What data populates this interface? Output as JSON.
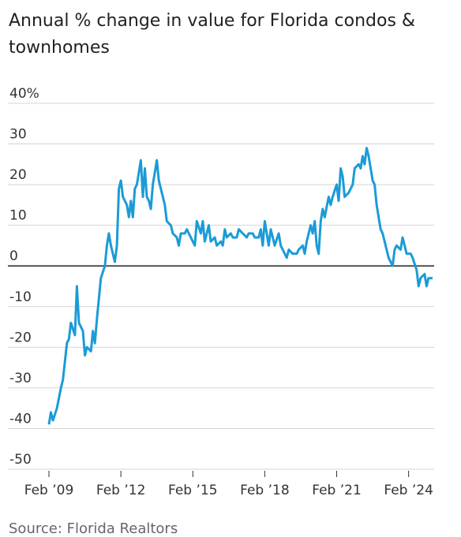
{
  "chart_data": {
    "type": "line",
    "subtitle": "Annual % change in value for Florida condos & townhomes",
    "source": "Source: Florida Realtors",
    "x": [
      "2009-02",
      "2009-03",
      "2009-04",
      "2009-06",
      "2009-08",
      "2009-09",
      "2009-11",
      "2009-12",
      "2010-01",
      "2010-03",
      "2010-04",
      "2010-05",
      "2010-07",
      "2010-08",
      "2010-09",
      "2010-11",
      "2010-12",
      "2011-01",
      "2011-02",
      "2011-04",
      "2011-06",
      "2011-07",
      "2011-08",
      "2011-09",
      "2011-10",
      "2011-11",
      "2011-12",
      "2012-01",
      "2012-02",
      "2012-03",
      "2012-05",
      "2012-06",
      "2012-07",
      "2012-08",
      "2012-09",
      "2012-10",
      "2012-12",
      "2013-01",
      "2013-02",
      "2013-03",
      "2013-04",
      "2013-05",
      "2013-06",
      "2013-08",
      "2013-09",
      "2013-11",
      "2013-12",
      "2014-01",
      "2014-03",
      "2014-04",
      "2014-06",
      "2014-07",
      "2014-08",
      "2014-10",
      "2014-11",
      "2014-12",
      "2015-02",
      "2015-03",
      "2015-04",
      "2015-06",
      "2015-07",
      "2015-08",
      "2015-10",
      "2015-11",
      "2016-01",
      "2016-02",
      "2016-04",
      "2016-05",
      "2016-06",
      "2016-07",
      "2016-09",
      "2016-10",
      "2016-12",
      "2017-01",
      "2017-03",
      "2017-05",
      "2017-06",
      "2017-08",
      "2017-09",
      "2017-11",
      "2017-12",
      "2018-01",
      "2018-02",
      "2018-04",
      "2018-05",
      "2018-07",
      "2018-09",
      "2018-10",
      "2018-11",
      "2019-01",
      "2019-02",
      "2019-04",
      "2019-06",
      "2019-07",
      "2019-09",
      "2019-10",
      "2019-11",
      "2020-01",
      "2020-02",
      "2020-03",
      "2020-04",
      "2020-05",
      "2020-06",
      "2020-07",
      "2020-08",
      "2020-10",
      "2020-11",
      "2020-12",
      "2021-02",
      "2021-03",
      "2021-04",
      "2021-05",
      "2021-06",
      "2021-08",
      "2021-10",
      "2021-11",
      "2022-01",
      "2022-02",
      "2022-03",
      "2022-04",
      "2022-05",
      "2022-06",
      "2022-08",
      "2022-09",
      "2022-10",
      "2022-12",
      "2023-01",
      "2023-03",
      "2023-04",
      "2023-06",
      "2023-07",
      "2023-08",
      "2023-10",
      "2023-11",
      "2023-12",
      "2024-01",
      "2024-03",
      "2024-04",
      "2024-06",
      "2024-07",
      "2024-08",
      "2024-10",
      "2024-11",
      "2024-12",
      "2025-02"
    ],
    "series": [
      {
        "name": "Annual % change",
        "color": "#1b9bd7",
        "values": [
          -39,
          -36,
          -38,
          -35,
          -30,
          -28,
          -19,
          -18,
          -14,
          -17,
          -5,
          -14,
          -16,
          -22,
          -20,
          -21,
          -16,
          -19,
          -13,
          -3,
          0,
          5,
          8,
          5,
          3,
          1,
          5,
          19,
          21,
          17,
          15,
          12,
          16,
          12,
          19,
          20,
          26,
          17,
          24,
          17,
          16,
          14,
          20,
          26,
          21,
          17,
          15,
          11,
          10,
          8,
          7,
          5,
          8,
          8,
          9,
          8,
          6,
          5,
          11,
          8,
          11,
          6,
          10,
          6,
          7,
          5,
          6,
          5,
          9,
          7,
          8,
          7,
          7,
          9,
          8,
          7,
          8,
          8,
          7,
          7,
          9,
          5,
          11,
          5,
          9,
          5,
          8,
          5,
          4,
          2,
          4,
          3,
          3,
          4,
          5,
          3,
          6,
          10,
          8,
          11,
          5,
          3,
          11,
          14,
          12,
          17,
          15,
          17,
          20,
          16,
          24,
          22,
          17,
          18,
          20,
          24,
          25,
          24,
          27,
          25,
          29,
          27,
          21,
          20,
          15,
          9,
          8,
          4,
          2,
          0,
          4,
          5,
          4,
          7,
          5,
          3,
          3,
          2,
          -1,
          -5,
          -3,
          -2,
          -5,
          -3,
          -3
        ]
      }
    ],
    "xlim": [
      "2009-02",
      "2025-02"
    ],
    "xticks": [
      {
        "value": "2009-02",
        "label": "Feb ’09"
      },
      {
        "value": "2012-02",
        "label": "Feb ’12"
      },
      {
        "value": "2015-02",
        "label": "Feb ’15"
      },
      {
        "value": "2018-02",
        "label": "Feb ’18"
      },
      {
        "value": "2021-02",
        "label": "Feb ’21"
      },
      {
        "value": "2024-02",
        "label": "Feb ’24"
      }
    ],
    "ylim": [
      -50,
      40
    ],
    "yticks": [
      {
        "value": 40,
        "label": "40%"
      },
      30,
      20,
      10,
      0,
      -10,
      -20,
      -30,
      -40,
      -50
    ],
    "grid": true
  }
}
